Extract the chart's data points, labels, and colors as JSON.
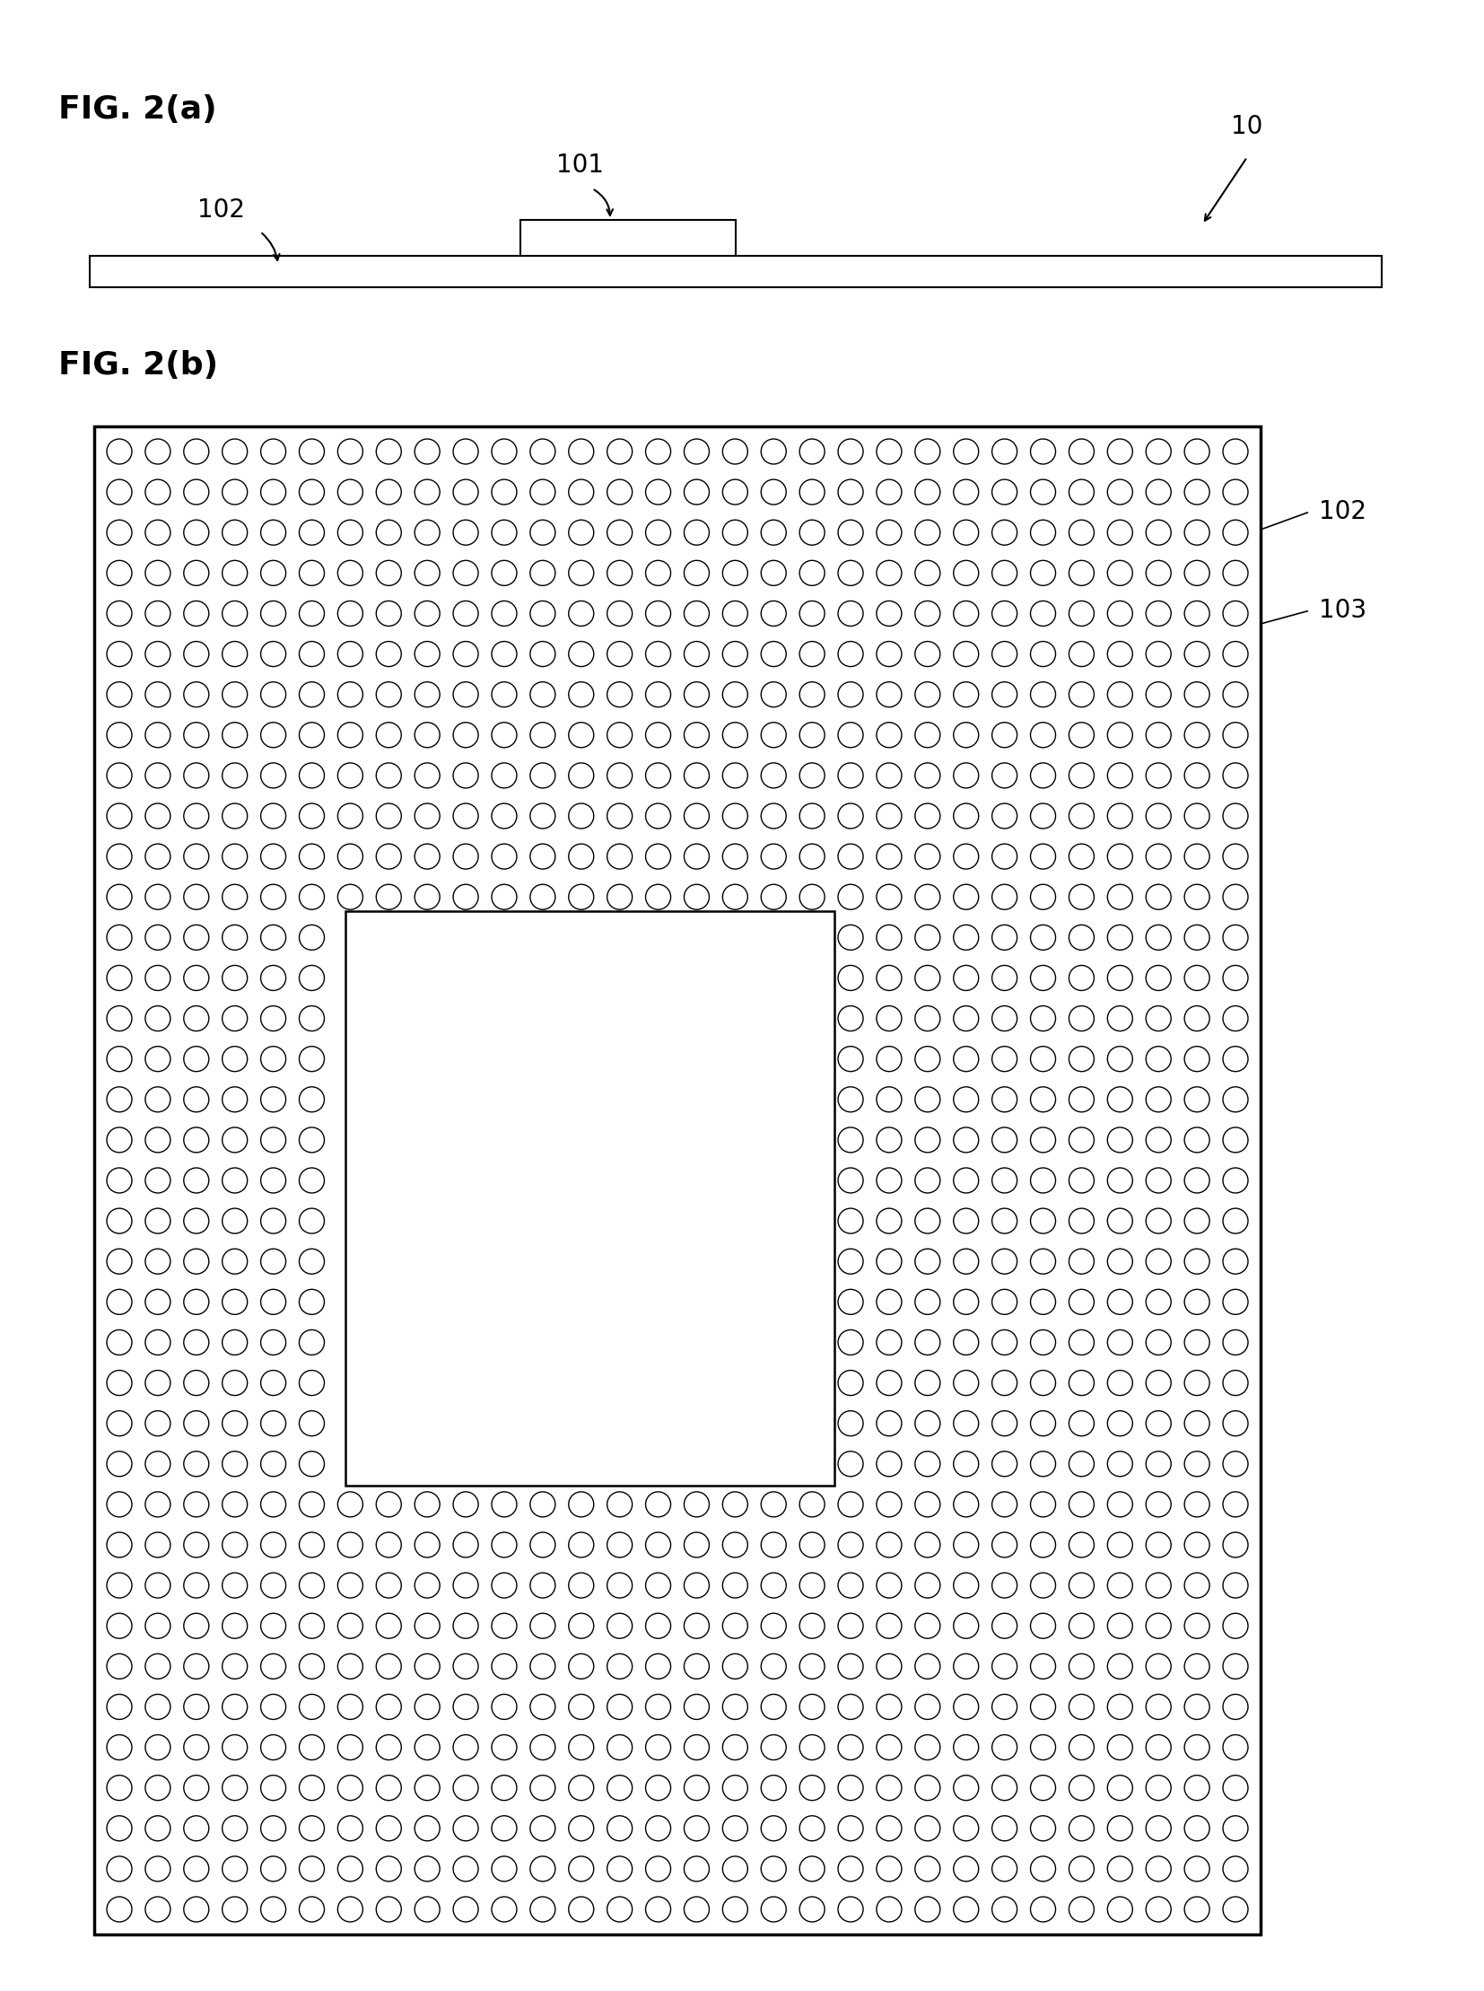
{
  "background_color": "#ffffff",
  "fig_width": 16.54,
  "fig_height": 22.18,
  "fig2a_label": "FIG. 2(a)",
  "fig2b_label": "FIG. 2(b)",
  "label_10": "10",
  "label_101": "101",
  "label_102_a": "102",
  "label_102_b": "102",
  "label_103": "103",
  "text_color": "#000000",
  "font_size_label": 26,
  "font_size_ref": 20
}
